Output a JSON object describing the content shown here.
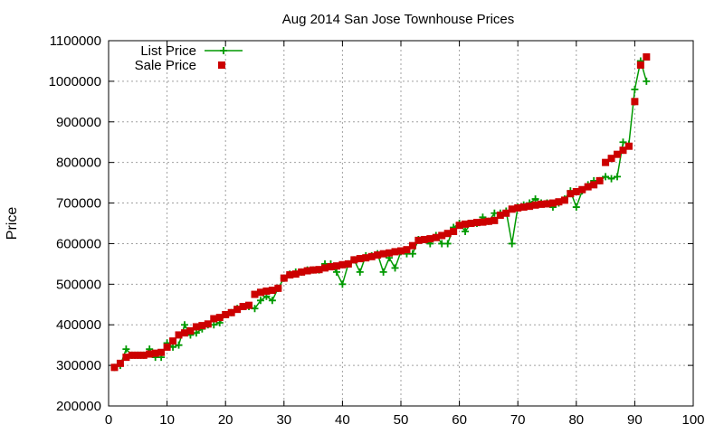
{
  "chart_data": {
    "type": "line",
    "title": "Aug 2014 San Jose Townhouse Prices",
    "xlabel": "",
    "ylabel": "Price",
    "xlim": [
      0,
      100
    ],
    "ylim": [
      200000,
      1100000
    ],
    "xticks": [
      "0",
      "10",
      "20",
      "30",
      "40",
      "50",
      "60",
      "70",
      "80",
      "90",
      "100"
    ],
    "yticks": [
      "200000",
      "300000",
      "400000",
      "500000",
      "600000",
      "700000",
      "800000",
      "900000",
      "1000000",
      "1100000"
    ],
    "grid": true,
    "legend_position": "top-left",
    "series": [
      {
        "name": "List Price",
        "style": "line+plus-markers",
        "color": "#009900",
        "x": [
          1,
          2,
          3,
          4,
          5,
          6,
          7,
          8,
          9,
          10,
          11,
          12,
          13,
          14,
          15,
          16,
          17,
          18,
          19,
          20,
          21,
          22,
          23,
          24,
          25,
          26,
          27,
          28,
          29,
          30,
          31,
          32,
          33,
          34,
          35,
          36,
          37,
          38,
          39,
          40,
          41,
          42,
          43,
          44,
          45,
          46,
          47,
          48,
          49,
          50,
          51,
          52,
          53,
          54,
          55,
          56,
          57,
          58,
          59,
          60,
          61,
          62,
          63,
          64,
          65,
          66,
          67,
          68,
          69,
          70,
          71,
          72,
          73,
          74,
          75,
          76,
          77,
          78,
          79,
          80,
          81,
          82,
          83,
          84,
          85,
          86,
          87,
          88,
          89,
          90,
          91,
          92
        ],
        "values": [
          295000,
          300000,
          340000,
          325000,
          325000,
          325000,
          340000,
          320000,
          320000,
          355000,
          345000,
          350000,
          400000,
          375000,
          380000,
          390000,
          400000,
          400000,
          405000,
          425000,
          430000,
          440000,
          445000,
          445000,
          440000,
          460000,
          470000,
          460000,
          490000,
          515000,
          525000,
          530000,
          530000,
          535000,
          535000,
          535000,
          550000,
          550000,
          530000,
          500000,
          550000,
          560000,
          530000,
          570000,
          570000,
          575000,
          530000,
          565000,
          540000,
          580000,
          575000,
          575000,
          610000,
          610000,
          600000,
          620000,
          600000,
          600000,
          640000,
          650000,
          630000,
          650000,
          650000,
          665000,
          655000,
          675000,
          675000,
          680000,
          600000,
          690000,
          695000,
          700000,
          710000,
          700000,
          700000,
          690000,
          700000,
          710000,
          730000,
          690000,
          730000,
          745000,
          755000,
          755000,
          765000,
          760000,
          765000,
          850000,
          845000,
          980000,
          1050000,
          1000000
        ]
      },
      {
        "name": "Sale Price",
        "style": "square-markers",
        "color": "#cc0000",
        "x": [
          1,
          2,
          3,
          4,
          5,
          6,
          7,
          8,
          9,
          10,
          11,
          12,
          13,
          14,
          15,
          16,
          17,
          18,
          19,
          20,
          21,
          22,
          23,
          24,
          25,
          26,
          27,
          28,
          29,
          30,
          31,
          32,
          33,
          34,
          35,
          36,
          37,
          38,
          39,
          40,
          41,
          42,
          43,
          44,
          45,
          46,
          47,
          48,
          49,
          50,
          51,
          52,
          53,
          54,
          55,
          56,
          57,
          58,
          59,
          60,
          61,
          62,
          63,
          64,
          65,
          66,
          67,
          68,
          69,
          70,
          71,
          72,
          73,
          74,
          75,
          76,
          77,
          78,
          79,
          80,
          81,
          82,
          83,
          84,
          85,
          86,
          87,
          88,
          89,
          90,
          91,
          92
        ],
        "values": [
          295000,
          305000,
          320000,
          325000,
          325000,
          325000,
          328000,
          330000,
          332000,
          345000,
          360000,
          375000,
          380000,
          385000,
          395000,
          398000,
          402000,
          415000,
          418000,
          425000,
          430000,
          438000,
          445000,
          448000,
          475000,
          480000,
          483000,
          485000,
          490000,
          515000,
          523000,
          525000,
          530000,
          533000,
          535000,
          536000,
          540000,
          543000,
          545000,
          548000,
          550000,
          560000,
          563000,
          565000,
          568000,
          572000,
          575000,
          577000,
          580000,
          582000,
          585000,
          595000,
          608000,
          610000,
          612000,
          615000,
          620000,
          625000,
          630000,
          645000,
          648000,
          650000,
          652000,
          653000,
          655000,
          657000,
          670000,
          675000,
          685000,
          688000,
          690000,
          692000,
          695000,
          697000,
          698000,
          700000,
          703000,
          707000,
          723000,
          728000,
          733000,
          740000,
          745000,
          755000,
          800000,
          810000,
          820000,
          830000,
          840000,
          950000,
          1040000,
          1060000
        ]
      }
    ]
  }
}
